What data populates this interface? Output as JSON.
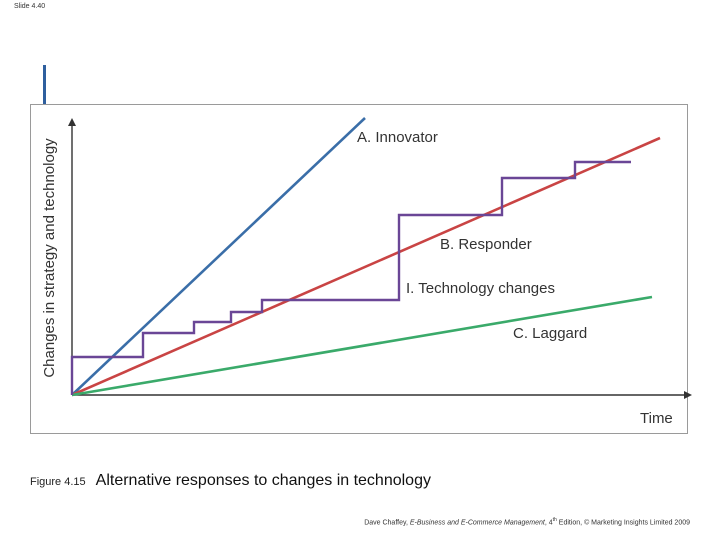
{
  "slide": {
    "number": "Slide 4.40"
  },
  "diagram": {
    "ylabel": "Changes in strategy and technology",
    "xlabel": "Time",
    "labels": {
      "innovator": "A. Innovator",
      "responder": "B. Responder",
      "technology_changes": "I. Technology changes",
      "laggard": "C. Laggard"
    },
    "colors": {
      "innovator": "#3a6ea8",
      "responder": "#c94444",
      "technology_changes": "#6a4696",
      "laggard": "#3aaa6a",
      "axis": "#333333"
    }
  },
  "caption": {
    "figure_label": "Figure 4.15",
    "title": "Alternative responses to changes in technology"
  },
  "footer": {
    "author": "Dave Chaffey, ",
    "book": "E-Business and E-Commerce Management",
    "edition_pre": ", 4",
    "edition_sup": "th",
    "edition_post": " Edition, © Marketing Insights Limited 2009"
  }
}
